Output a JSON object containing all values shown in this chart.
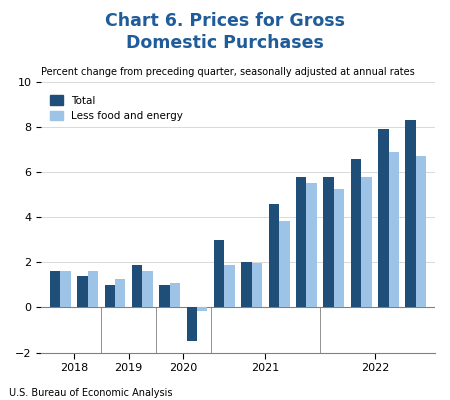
{
  "title": "Chart 6. Prices for Gross\nDomestic Purchases",
  "subtitle": "Percent change from preceding quarter, seasonally adjusted at annual rates",
  "source": "U.S. Bureau of Economic Analysis",
  "title_color": "#1F5C99",
  "total_color": "#1F4E79",
  "less_color": "#9DC3E6",
  "legend_labels": [
    "Total",
    "Less food and energy"
  ],
  "ylim": [
    -2,
    10
  ],
  "yticks": [
    -2,
    0,
    2,
    4,
    6,
    8,
    10
  ],
  "year_labels": [
    "2018",
    "2019",
    "2020",
    "2021",
    "2022"
  ],
  "total": [
    1.6,
    1.4,
    1.0,
    1.9,
    1.0,
    -1.5,
    3.0,
    2.0,
    4.6,
    5.8,
    5.8,
    6.6,
    7.9,
    8.3
  ],
  "less": [
    1.6,
    1.6,
    1.25,
    1.6,
    1.1,
    -0.15,
    1.9,
    1.95,
    3.85,
    5.5,
    5.25,
    5.8,
    6.9,
    6.7
  ],
  "n_groups": 14,
  "bar_width": 0.38,
  "year_centers": [
    0.5,
    2.5,
    4.5,
    7.5,
    11.5
  ],
  "year_separators": [
    1.5,
    3.5,
    5.5,
    9.5
  ]
}
